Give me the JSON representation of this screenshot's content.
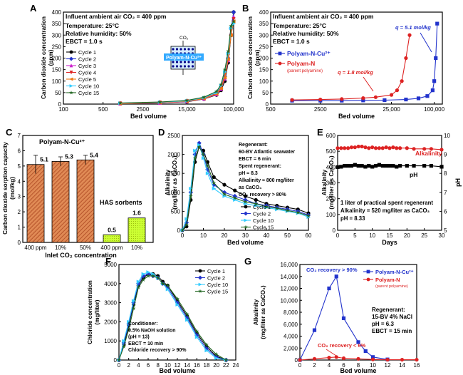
{
  "colors": {
    "black": "#000000",
    "blue": "#2233cc",
    "red": "#dd2222",
    "cyan": "#33ccff",
    "magenta": "#cc22cc",
    "green": "#226622",
    "pink": "#ff66cc",
    "orange": "#ee7711",
    "hatch": "#b5532a",
    "hasfill": "#ccff33",
    "darkblue": "#000088"
  },
  "chart_data": [
    {
      "panel": "A",
      "type": "line",
      "title_note": "Influent ambient air CO₂ = 400 ppm",
      "conditions": [
        "Temperature: 25°C",
        "Relative humidity: 50%",
        "EBCT = 1.0 s"
      ],
      "xlabel": "Bed volume",
      "ylabel": "Carbon dioxide concentration (ppm)",
      "xscale": "log",
      "xticks": [
        "100",
        "500",
        "2500",
        "15,000",
        "100,000"
      ],
      "yticks": [
        "0",
        "50",
        "100",
        "150",
        "200",
        "250",
        "300",
        "350",
        "400"
      ],
      "ylim": [
        0,
        400
      ],
      "inset_label": "Polyam-N-Cu²⁺",
      "inset_co2": "CO₂",
      "series": [
        {
          "name": "Cycle 1",
          "marker": "circle",
          "x": [
            1000,
            5000,
            15000,
            30000,
            50000,
            60000,
            70000,
            80000,
            90000,
            100000
          ],
          "y": [
            2,
            5,
            10,
            22,
            40,
            60,
            100,
            180,
            300,
            400
          ]
        },
        {
          "name": "Cycle 2",
          "marker": "diamond",
          "x": [
            1000,
            5000,
            15000,
            30000,
            50000,
            60000,
            70000,
            80000,
            90000,
            100000
          ],
          "y": [
            3,
            6,
            12,
            25,
            45,
            70,
            120,
            200,
            330,
            400
          ]
        },
        {
          "name": "Cycle 3",
          "marker": "triangle-up",
          "x": [
            1000,
            5000,
            15000,
            30000,
            50000,
            60000,
            70000,
            80000,
            90000,
            100000
          ],
          "y": [
            2,
            5,
            11,
            23,
            42,
            65,
            110,
            190,
            310,
            380
          ]
        },
        {
          "name": "Cycle 4",
          "marker": "triangle-down",
          "x": [
            1000,
            5000,
            15000,
            30000,
            50000,
            60000,
            70000,
            80000,
            90000,
            100000
          ],
          "y": [
            3,
            7,
            13,
            26,
            47,
            75,
            130,
            210,
            320,
            370
          ]
        },
        {
          "name": "Cycle 5",
          "marker": "triangle-left",
          "x": [
            1000,
            5000,
            15000,
            30000,
            50000,
            60000,
            70000,
            80000,
            90000,
            100000
          ],
          "y": [
            2,
            6,
            12,
            24,
            44,
            68,
            115,
            195,
            300,
            360
          ]
        },
        {
          "name": "Cycle 10",
          "marker": "triangle-right",
          "x": [
            1000,
            5000,
            15000,
            30000,
            50000,
            60000,
            70000,
            80000,
            90000,
            100000
          ],
          "y": [
            4,
            8,
            14,
            28,
            50,
            80,
            140,
            220,
            330,
            350
          ]
        },
        {
          "name": "Cycle 15",
          "marker": "star",
          "x": [
            1000,
            5000,
            15000,
            30000,
            50000,
            60000,
            70000,
            80000,
            90000,
            100000
          ],
          "y": [
            5,
            9,
            16,
            30,
            55,
            85,
            150,
            230,
            340,
            360
          ]
        }
      ]
    },
    {
      "panel": "B",
      "type": "line",
      "title_note": "Influent ambient air CO₂ = 400 ppm",
      "conditions": [
        "Temperature: 25°C",
        "Relative humidity: 50%",
        "EBCT = 1.0 s"
      ],
      "xlabel": "Bed volume",
      "ylabel": "Carbon dioxide concentration (ppm)",
      "xscale": "log",
      "xticks": [
        "500",
        "2500",
        "25,000",
        "100,000"
      ],
      "yticks": [
        "0",
        "50",
        "100",
        "150",
        "200",
        "250",
        "300",
        "350",
        "400"
      ],
      "ylim": [
        0,
        400
      ],
      "annotations": [
        "q = 5.1 mol/kg",
        "q = 1.8 mol/kg"
      ],
      "series": [
        {
          "name": "Polyam-N-Cu²⁺",
          "marker": "square",
          "x": [
            1000,
            2500,
            5000,
            10000,
            20000,
            40000,
            60000,
            80000,
            95000,
            100000,
            105000,
            110000
          ],
          "y": [
            15,
            15,
            15,
            16,
            17,
            20,
            25,
            35,
            60,
            100,
            200,
            350
          ]
        },
        {
          "name": "Polyam-N",
          "sub": "(parent polyamine)",
          "marker": "circle",
          "x": [
            1000,
            2500,
            5000,
            10000,
            15000,
            25000,
            30000,
            35000,
            40000,
            45000
          ],
          "y": [
            18,
            20,
            22,
            26,
            30,
            40,
            60,
            100,
            200,
            300
          ]
        }
      ]
    },
    {
      "panel": "C",
      "type": "bar",
      "title": "Polyam-N-Cu²⁺",
      "group2_label": "HAS sorbents",
      "xlabel": "Inlet CO₂ concentration",
      "ylabel": "Carbon dioxide sorption capacity (mol/kg)",
      "categories": [
        "400 ppm",
        "10%",
        "50%",
        "400 ppm",
        "10%"
      ],
      "values": [
        5.1,
        5.3,
        5.4,
        0.5,
        1.6
      ],
      "value_labels": [
        "5.1",
        "5.3",
        "5.4",
        "0.5",
        "1.6"
      ],
      "errors": [
        0.6,
        0.3,
        0.3,
        0,
        0
      ],
      "ylim": [
        0,
        7
      ],
      "yticks": [
        "0",
        "1",
        "2",
        "3",
        "4",
        "5",
        "6",
        "7"
      ]
    },
    {
      "panel": "D",
      "type": "line",
      "notes": [
        "Regenerant:",
        "60-BV Atlantic seawater",
        "EBCT = 6 min",
        "Spent regenerant:",
        "pH ≈ 8.3",
        "Alkalinity ≈ 800 mg/liter",
        "as CaCO₃",
        "CO₂ recovery > 80%"
      ],
      "xlabel": "Bed volume",
      "ylabel": "Alkalinity (mg/liter as CaCO₃)",
      "xlim": [
        0,
        60
      ],
      "ylim": [
        0,
        2500
      ],
      "xticks": [
        "0",
        "10",
        "20",
        "30",
        "40",
        "50",
        "60"
      ],
      "yticks": [
        "0",
        "500",
        "1000",
        "1500",
        "2000",
        "2500"
      ],
      "series": [
        {
          "name": "Cycle 1",
          "marker": "circle",
          "x": [
            0,
            2,
            4,
            6,
            8,
            10,
            12,
            15,
            20,
            25,
            30,
            35,
            40,
            45,
            50,
            55,
            60
          ],
          "y": [
            0,
            100,
            800,
            1800,
            2200,
            2100,
            1800,
            1400,
            1200,
            1050,
            900,
            800,
            700,
            650,
            600,
            550,
            450
          ]
        },
        {
          "name": "Cycle 2",
          "marker": "diamond",
          "x": [
            0,
            2,
            4,
            6,
            8,
            10,
            12,
            15,
            20,
            25,
            30,
            35,
            40,
            45,
            50,
            55,
            60
          ],
          "y": [
            0,
            200,
            1000,
            2000,
            2300,
            2000,
            1600,
            1200,
            1000,
            900,
            800,
            700,
            650,
            600,
            550,
            500,
            400
          ]
        },
        {
          "name": "Cycle 10",
          "marker": "triangle-right",
          "x": [
            0,
            2,
            4,
            6,
            8,
            10,
            12,
            15,
            20,
            25,
            30,
            35,
            40,
            45,
            50,
            55,
            60
          ],
          "y": [
            0,
            300,
            1100,
            2100,
            2250,
            1900,
            1500,
            1100,
            900,
            800,
            700,
            650,
            600,
            550,
            500,
            450,
            350
          ]
        },
        {
          "name": "Cycle 15",
          "marker": "star",
          "x": [
            0,
            2,
            4,
            6,
            8,
            10,
            12,
            15,
            20,
            25,
            30,
            35,
            40,
            45,
            50,
            55,
            60
          ],
          "y": [
            0,
            150,
            900,
            1900,
            2200,
            2000,
            1700,
            1250,
            950,
            850,
            750,
            700,
            620,
            580,
            520,
            470,
            380
          ]
        }
      ]
    },
    {
      "panel": "E",
      "type": "line",
      "xlabel": "Days",
      "ylabel": "Alkalinity (mg/liter as CaCO₃)",
      "y2label": "pH",
      "xlim": [
        0,
        30
      ],
      "ylim": [
        0,
        600
      ],
      "y2lim": [
        5,
        10
      ],
      "xticks": [
        "0",
        "5",
        "10",
        "15",
        "20",
        "25",
        "30"
      ],
      "yticks": [
        "0",
        "100",
        "200",
        "300",
        "400",
        "500",
        "600"
      ],
      "y2ticks": [
        "5",
        "6",
        "7",
        "8",
        "9",
        "10"
      ],
      "notes": [
        "1 liter of practical spent regenerant",
        "Alkalinity = 520 mg/liter as CaCO₃",
        "pH = 8.33"
      ],
      "series": [
        {
          "name": "Alkalinity",
          "axis": "left",
          "marker": "circle",
          "x": [
            0,
            1,
            2,
            3,
            4,
            5,
            6,
            7,
            8,
            9,
            10,
            11,
            12,
            13,
            14,
            15,
            16,
            17,
            18,
            20,
            22,
            25,
            27,
            30
          ],
          "y": [
            520,
            520,
            520,
            520,
            525,
            525,
            530,
            530,
            525,
            520,
            525,
            520,
            520,
            520,
            525,
            520,
            525,
            520,
            520,
            520,
            515,
            515,
            515,
            510
          ]
        },
        {
          "name": "pH",
          "axis": "right",
          "marker": "square",
          "x": [
            0,
            1,
            2,
            3,
            4,
            5,
            6,
            7,
            8,
            9,
            10,
            11,
            12,
            13,
            14,
            15,
            16,
            17,
            18,
            20,
            22,
            25,
            27,
            30
          ],
          "y": [
            8.33,
            8.35,
            8.4,
            8.4,
            8.4,
            8.45,
            8.4,
            8.4,
            8.35,
            8.4,
            8.35,
            8.4,
            8.45,
            8.4,
            8.4,
            8.4,
            8.4,
            8.35,
            8.4,
            8.4,
            8.4,
            8.4,
            8.4,
            8.35
          ]
        }
      ]
    },
    {
      "panel": "F",
      "type": "line",
      "notes": [
        "Conditioner:",
        "0.5% NaOH solution",
        "(pH = 13)",
        "EBCT = 10 min",
        "Chloride recovery > 90%"
      ],
      "xlabel": "Bed volume",
      "ylabel": "Chloride concentration (mg/liter)",
      "xlim": [
        0,
        24
      ],
      "ylim": [
        0,
        5000
      ],
      "xticks": [
        "0",
        "2",
        "4",
        "6",
        "8",
        "10",
        "12",
        "14",
        "16",
        "18",
        "20",
        "22",
        "24"
      ],
      "yticks": [
        "0",
        "1000",
        "2000",
        "3000",
        "4000",
        "5000"
      ],
      "series": [
        {
          "name": "Cycle 1",
          "marker": "circle",
          "x": [
            0,
            1,
            2,
            3,
            4,
            5,
            6,
            7,
            8,
            9,
            10,
            12,
            14,
            16,
            18,
            20,
            22
          ],
          "y": [
            0,
            800,
            1800,
            2900,
            3900,
            4300,
            4500,
            4500,
            4400,
            4100,
            3900,
            3100,
            2300,
            1400,
            700,
            200,
            0
          ]
        },
        {
          "name": "Cycle 2",
          "marker": "diamond",
          "x": [
            0,
            1,
            2,
            3,
            4,
            5,
            6,
            7,
            8,
            9,
            10,
            12,
            14,
            16,
            18,
            20,
            22
          ],
          "y": [
            0,
            900,
            1900,
            3000,
            4000,
            4400,
            4500,
            4400,
            4300,
            4000,
            3800,
            3000,
            2200,
            1300,
            600,
            150,
            0
          ]
        },
        {
          "name": "Cycle 10",
          "marker": "triangle-right",
          "x": [
            0,
            1,
            2,
            3,
            4,
            5,
            6,
            7,
            8,
            9,
            10,
            12,
            14,
            16,
            18,
            20,
            22
          ],
          "y": [
            0,
            1000,
            2000,
            3100,
            4100,
            4500,
            4600,
            4500,
            4300,
            4000,
            3700,
            2900,
            2100,
            1200,
            500,
            100,
            0
          ]
        },
        {
          "name": "Cycle 15",
          "marker": "star",
          "x": [
            0,
            1,
            2,
            3,
            4,
            5,
            6,
            7,
            8,
            9,
            10,
            12,
            14,
            16,
            18,
            20,
            22
          ],
          "y": [
            0,
            700,
            1600,
            2700,
            3800,
            4200,
            4400,
            4400,
            4300,
            4000,
            3900,
            3200,
            2400,
            1500,
            800,
            300,
            0
          ]
        }
      ]
    },
    {
      "panel": "G",
      "type": "line",
      "notes": [
        "Regenerant:",
        "15-BV 4% NaCl",
        "pH = 6.3",
        "EBCT = 15 min"
      ],
      "annotations": [
        "CO₂ recovery > 90%",
        "CO₂ recovery < 6%"
      ],
      "xlabel": "Bed volume",
      "ylabel": "Alkalinity (mg/liter as CaCO₃)",
      "xlim": [
        0,
        16
      ],
      "ylim": [
        0,
        16000
      ],
      "xticks": [
        "0",
        "2",
        "4",
        "6",
        "8",
        "10",
        "12",
        "14",
        "16"
      ],
      "yticks": [
        "0",
        "2,000",
        "4,000",
        "6,000",
        "8,000",
        "10,000",
        "12,000",
        "14,000",
        "16,000"
      ],
      "series": [
        {
          "name": "Polyam-N-Cu²⁺",
          "marker": "square",
          "x": [
            0,
            2,
            4,
            5,
            6,
            8,
            9,
            10,
            12
          ],
          "y": [
            0,
            5000,
            12000,
            14000,
            7000,
            3000,
            1500,
            500,
            100
          ]
        },
        {
          "name": "Polyam-N",
          "sub": "(parent polyamine)",
          "marker": "circle",
          "x": [
            0,
            2,
            4,
            5,
            6,
            8,
            10,
            12,
            14,
            16
          ],
          "y": [
            0,
            200,
            400,
            500,
            300,
            200,
            100,
            50,
            50,
            50
          ]
        }
      ]
    }
  ]
}
